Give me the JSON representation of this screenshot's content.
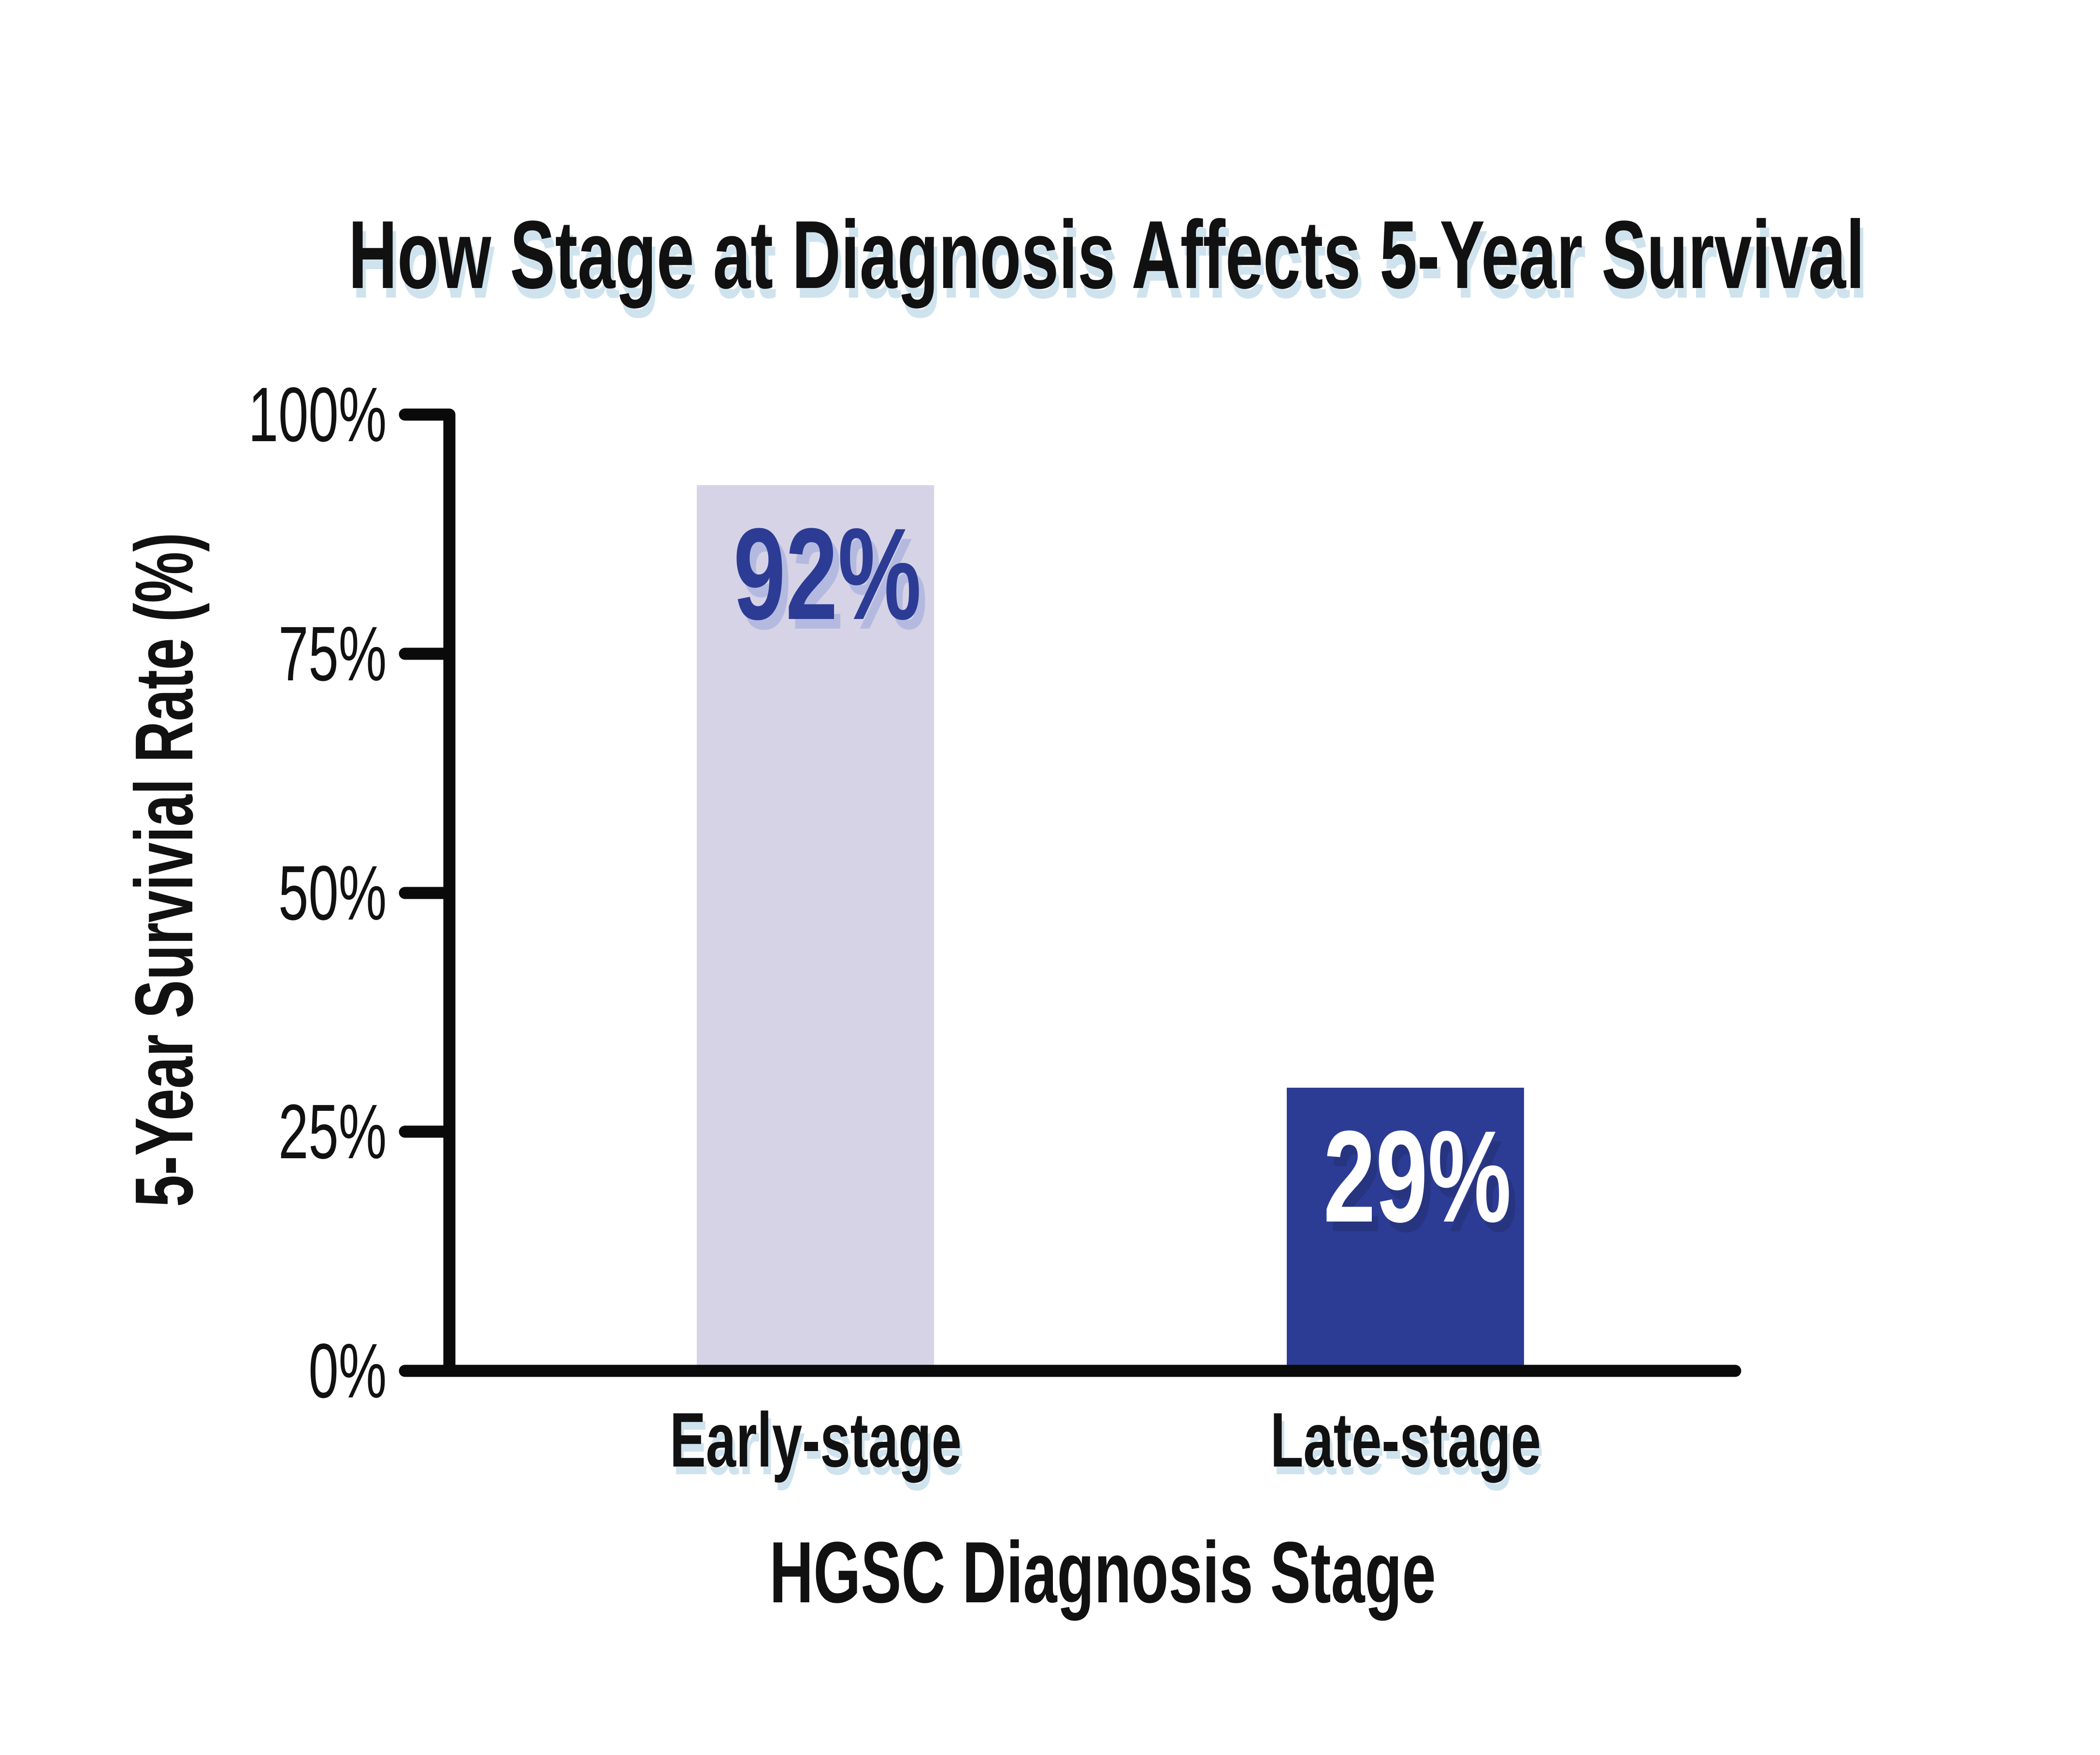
{
  "chart_data": {
    "type": "bar",
    "title": "How Stage at Diagnosis Affects 5-Year Survival",
    "xlabel": "HGSC Diagnosis Stage",
    "ylabel": "5-Year Survivial Rate (%)",
    "categories": [
      "Early-stage",
      "Late-stage"
    ],
    "values": [
      92,
      29
    ],
    "value_labels": [
      "92%",
      "29%"
    ],
    "y_ticks": [
      "100%",
      "75%",
      "50%",
      "25%",
      "0%"
    ],
    "ylim": [
      0,
      100
    ],
    "grid": false,
    "legend": "none",
    "bar_colors": [
      "#d7d3e6",
      "#2c3c95"
    ],
    "value_label_colors": [
      "#2c3c95",
      "#ffffff"
    ],
    "value_label_shadow_colors": [
      "#b4badf",
      "#273480"
    ]
  },
  "colors": {
    "background": "#ffffff",
    "text": "#111111",
    "axis": "#0a0a0a",
    "title_shadow": "#cfe3ee",
    "bar_early": "#d7d3e6",
    "bar_late": "#2c3c95"
  }
}
